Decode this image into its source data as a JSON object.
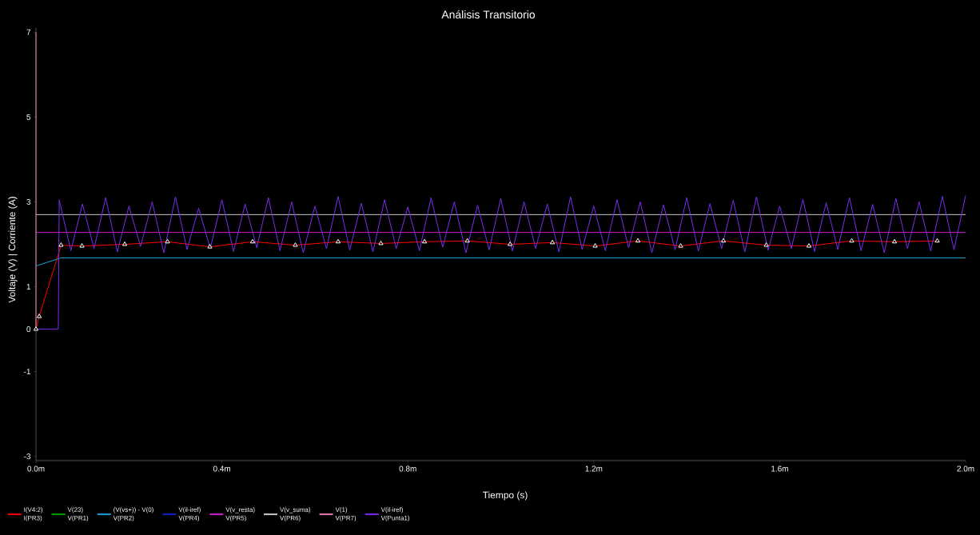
{
  "chart_data": {
    "type": "line",
    "title": "Análisis Transitorio",
    "xlabel": "Tiempo (s)",
    "ylabel": "Voltaje (V) | Corriente (A)",
    "xlim": [
      0,
      2
    ],
    "ylim": [
      -3.1,
      7.1
    ],
    "xticks": [
      {
        "value": 0,
        "label": "0.0m"
      },
      {
        "value": 0.4,
        "label": "0.4m"
      },
      {
        "value": 0.8,
        "label": "0.8m"
      },
      {
        "value": 1.2,
        "label": "1.2m"
      },
      {
        "value": 1.6,
        "label": "1.6m"
      },
      {
        "value": 2,
        "label": "2.0m"
      }
    ],
    "yticks": [
      -3,
      -1,
      0,
      1,
      3,
      5,
      7
    ],
    "grid": false,
    "legend": "bottom",
    "marker": "none",
    "line_style": "solid",
    "annotations": [
      "I(PR3)",
      "V(PR1)",
      "V(PR2)",
      "V(PR4)",
      "V(PR5)",
      "V(PR6)",
      "V(PR7)",
      "V(Punta1)"
    ],
    "series": [
      {
        "name": "I(V4:2)",
        "color": "#ff0000",
        "marker": "triangle",
        "x": [
          0,
          0.007,
          0.054,
          0.099,
          0.191,
          0.283,
          0.374,
          0.466,
          0.558,
          0.65,
          0.742,
          0.836,
          0.928,
          1.02,
          1.111,
          1.203,
          1.295,
          1.387,
          1.479,
          1.571,
          1.663,
          1.755,
          1.847,
          1.939
        ],
        "values": [
          0,
          0.3,
          1.98,
          1.96,
          2.0,
          2.06,
          1.94,
          2.06,
          1.98,
          2.06,
          2.02,
          2.06,
          2.08,
          2.0,
          2.04,
          1.96,
          2.08,
          1.96,
          2.08,
          1.98,
          1.96,
          2.08,
          2.06,
          2.08
        ]
      },
      {
        "name": "V(23)",
        "color": "#00a000",
        "values": [
          null
        ]
      },
      {
        "name": "(V(vs+)) - V(0)",
        "color": "#1a9fd0",
        "x": [
          0,
          0.054,
          2
        ],
        "values": [
          1.49,
          1.68,
          1.68
        ]
      },
      {
        "name": "V(il-iref)",
        "color": "#1020c0",
        "values": [
          null
        ]
      },
      {
        "name": "V(v_resta)",
        "color": "#d020d0",
        "x": [
          0,
          2
        ],
        "values": [
          2.28,
          2.28
        ]
      },
      {
        "name": "V(v_suma)",
        "color": "#c8c8c8",
        "x": [
          0,
          2
        ],
        "values": [
          2.7,
          2.7
        ]
      },
      {
        "name": "V(1)",
        "color": "#e878b0",
        "x": [
          0,
          0
        ],
        "values": [
          7,
          0
        ]
      },
      {
        "name": "V(il-iref)",
        "color": "#7a2cf0",
        "x": [
          0,
          0.048,
          0.05,
          0.075,
          0.1,
          0.125,
          0.15,
          0.175,
          0.2,
          0.225,
          0.25,
          0.275,
          0.3,
          0.325,
          0.35,
          0.375,
          0.4,
          0.425,
          0.45,
          0.475,
          0.5,
          0.525,
          0.55,
          0.575,
          0.6,
          0.625,
          0.65,
          0.675,
          0.7,
          0.725,
          0.75,
          0.775,
          0.8,
          0.825,
          0.85,
          0.875,
          0.9,
          0.925,
          0.95,
          0.975,
          1.0,
          1.025,
          1.05,
          1.075,
          1.1,
          1.125,
          1.15,
          1.175,
          1.2,
          1.225,
          1.25,
          1.275,
          1.3,
          1.325,
          1.35,
          1.375,
          1.4,
          1.425,
          1.45,
          1.475,
          1.5,
          1.525,
          1.55,
          1.575,
          1.6,
          1.625,
          1.65,
          1.675,
          1.7,
          1.725,
          1.75,
          1.775,
          1.8,
          1.825,
          1.85,
          1.875,
          1.9,
          1.925,
          1.95,
          1.975,
          2.0
        ],
        "values": [
          0,
          0,
          3.05,
          1.85,
          2.95,
          1.9,
          3.1,
          1.82,
          2.9,
          1.95,
          3.0,
          1.8,
          3.12,
          1.88,
          2.85,
          1.9,
          3.05,
          1.83,
          2.95,
          1.92,
          3.1,
          1.85,
          3.0,
          1.8,
          2.9,
          1.9,
          3.13,
          1.86,
          2.97,
          1.82,
          3.05,
          1.9,
          2.88,
          1.85,
          3.1,
          1.93,
          3.0,
          1.8,
          2.92,
          1.87,
          3.08,
          1.84,
          3.0,
          1.9,
          2.95,
          1.82,
          3.12,
          1.88,
          2.9,
          1.85,
          3.05,
          1.92,
          3.0,
          1.8,
          2.93,
          1.87,
          3.1,
          1.84,
          2.96,
          1.9,
          3.04,
          1.82,
          3.12,
          1.86,
          2.9,
          1.9,
          3.06,
          1.83,
          2.98,
          1.88,
          3.1,
          1.85,
          2.94,
          1.8,
          3.08,
          1.9,
          3.0,
          1.84,
          3.13,
          1.87,
          3.15
        ]
      }
    ]
  }
}
